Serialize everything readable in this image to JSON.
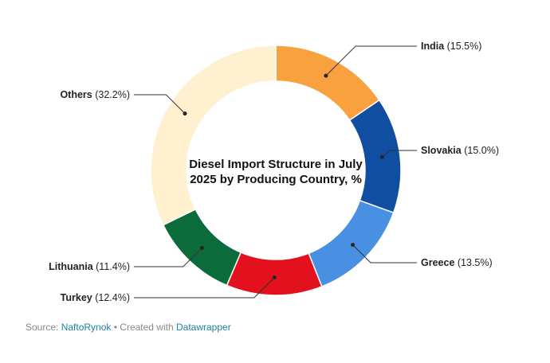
{
  "chart_data": {
    "type": "pie",
    "title_lines": [
      "Diesel Import Structure in July",
      "2025 by Producing Country, %"
    ],
    "slices": [
      {
        "label": "India",
        "value": 15.5,
        "display": "(15.5%)",
        "color": "#f9a03f"
      },
      {
        "label": "Slovakia",
        "value": 15.0,
        "display": "(15.0%)",
        "color": "#0f4ea0"
      },
      {
        "label": "Greece",
        "value": 13.5,
        "display": "(13.5%)",
        "color": "#4a90e2"
      },
      {
        "label": "Turkey",
        "value": 12.4,
        "display": "(12.4%)",
        "color": "#e3101e"
      },
      {
        "label": "Lithuania",
        "value": 11.4,
        "display": "(11.4%)",
        "color": "#0b6b3a"
      },
      {
        "label": "Others",
        "value": 32.2,
        "display": "(32.2%)",
        "color": "#fff1cf"
      }
    ]
  },
  "footer": {
    "source_prefix": "Source: ",
    "source_name": "NaftoRynok",
    "separator": " • Created with ",
    "tool_name": "Datawrapper"
  }
}
